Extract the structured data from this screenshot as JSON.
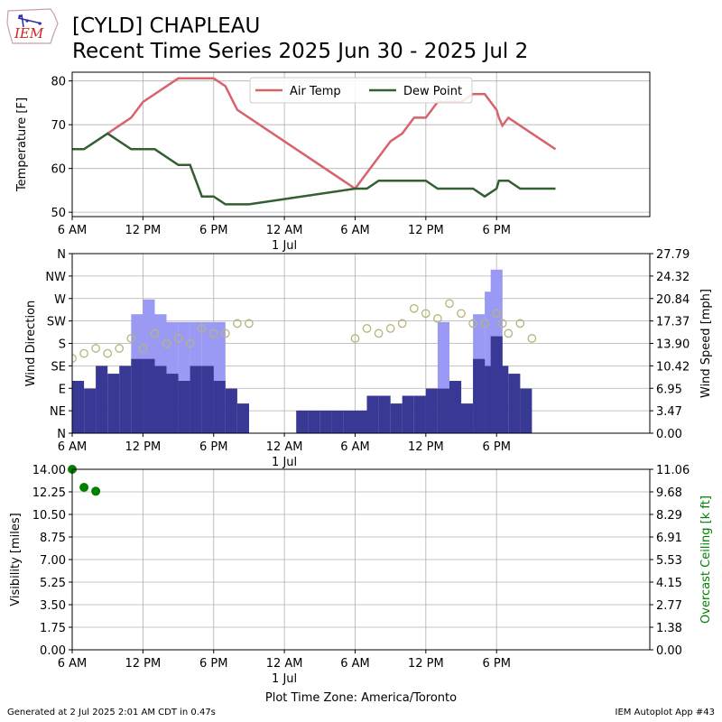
{
  "title": "[CYLD] CHAPLEAU",
  "subtitle": "Recent Time Series 2025 Jun 30 - 2025 Jul 2",
  "logo_text": "IEM",
  "footer_left": "Generated at 2 Jul 2025 2:01 AM CDT in 0.47s",
  "footer_right": "IEM Autoplot App #43",
  "timezone_label": "Plot Time Zone: America/Toronto",
  "colors": {
    "air_temp": "#d9636a",
    "dew_point": "#335f33",
    "gust": "#9a9af5",
    "wind": "#383895",
    "direction_marker": "#b5b57a",
    "visibility": "#008000",
    "ceiling_axis": "#008000"
  },
  "chart_data": [
    {
      "type": "line",
      "name": "temperature",
      "ylabel": "Temperature [F]",
      "ylim": [
        49,
        82
      ],
      "yticks": [
        50,
        60,
        70,
        80
      ],
      "xlim": [
        0,
        49
      ],
      "xticks": [
        {
          "h": 0,
          "label": "6 AM"
        },
        {
          "h": 6,
          "label": "12 PM"
        },
        {
          "h": 12,
          "label": "6 PM"
        },
        {
          "h": 18,
          "label": "12 AM",
          "sublabel": "1 Jul"
        },
        {
          "h": 24,
          "label": "6 AM"
        },
        {
          "h": 30,
          "label": "12 PM"
        },
        {
          "h": 36,
          "label": "6 PM"
        }
      ],
      "grid": true,
      "legend_position": "top-center",
      "series": [
        {
          "name": "Air Temp",
          "color_key": "air_temp",
          "x": [
            3,
            5,
            6,
            9,
            12,
            13,
            14,
            24,
            25,
            27,
            28,
            29,
            30,
            31,
            33,
            34,
            35,
            36,
            36.2,
            36.5,
            37,
            39,
            40,
            41
          ],
          "y": [
            68,
            71.6,
            75.2,
            80.6,
            80.6,
            78.8,
            73.4,
            55.4,
            59,
            66.2,
            68,
            71.6,
            71.6,
            75.2,
            75.2,
            77,
            77,
            73.4,
            71.6,
            69.8,
            71.6,
            68,
            66.2,
            64.4
          ]
        },
        {
          "name": "Dew Point",
          "color_key": "dew_point",
          "x": [
            0,
            1,
            3,
            5,
            6,
            7,
            9,
            10,
            11,
            12,
            13,
            15,
            24,
            25,
            26,
            30,
            31,
            34,
            35,
            36,
            36.2,
            36.5,
            37,
            38,
            39,
            40,
            41
          ],
          "y": [
            64.4,
            64.4,
            68,
            64.4,
            64.4,
            64.4,
            60.8,
            60.8,
            53.6,
            53.6,
            51.8,
            51.8,
            55.4,
            55.4,
            57.2,
            57.2,
            55.4,
            55.4,
            53.6,
            55.4,
            57.2,
            57.2,
            57.2,
            55.4,
            55.4,
            55.4,
            55.4
          ]
        }
      ]
    },
    {
      "type": "bar",
      "name": "wind",
      "ylabel": "Wind Direction",
      "y2label": "Wind Speed [mph]",
      "ylim": [
        0,
        360
      ],
      "ytick_labels": [
        "N",
        "NE",
        "E",
        "SE",
        "S",
        "SW",
        "W",
        "NW",
        "N"
      ],
      "y2lim": [
        0,
        27.79
      ],
      "y2ticks": [
        "0.00",
        "3.47",
        "6.95",
        "10.42",
        "13.90",
        "17.37",
        "20.84",
        "24.32",
        "27.79"
      ],
      "xlim": [
        0,
        49
      ],
      "grid": true,
      "wind_speed": [
        [
          0.5,
          8.1
        ],
        [
          1.5,
          6.9
        ],
        [
          2.5,
          10.4
        ],
        [
          3.5,
          9.2
        ],
        [
          4.5,
          10.4
        ],
        [
          5.5,
          11.5
        ],
        [
          6.5,
          11.5
        ],
        [
          7.5,
          10.4
        ],
        [
          8.5,
          9.2
        ],
        [
          9.5,
          8.1
        ],
        [
          10.5,
          10.4
        ],
        [
          11.5,
          10.4
        ],
        [
          12.5,
          8.1
        ],
        [
          13.5,
          6.9
        ],
        [
          14.5,
          4.6
        ],
        [
          19.5,
          3.5
        ],
        [
          20.5,
          3.5
        ],
        [
          21.5,
          3.5
        ],
        [
          22.5,
          3.5
        ],
        [
          23.5,
          3.5
        ],
        [
          24.5,
          3.5
        ],
        [
          25.5,
          5.8
        ],
        [
          26.5,
          5.8
        ],
        [
          27.5,
          4.6
        ],
        [
          28.5,
          5.8
        ],
        [
          29.5,
          5.8
        ],
        [
          30.5,
          6.9
        ],
        [
          31.5,
          6.9
        ],
        [
          32.5,
          8.1
        ],
        [
          33.5,
          4.6
        ],
        [
          34.5,
          11.5
        ],
        [
          35.5,
          10.4
        ],
        [
          36.0,
          15.0
        ],
        [
          36.5,
          10.4
        ],
        [
          37.5,
          9.2
        ],
        [
          38.5,
          6.9
        ]
      ],
      "wind_gust": [
        [
          5.5,
          18.4
        ],
        [
          6.5,
          20.7
        ],
        [
          7.5,
          18.4
        ],
        [
          8.5,
          17.2
        ],
        [
          9.5,
          17.2
        ],
        [
          10.5,
          17.2
        ],
        [
          11.5,
          17.2
        ],
        [
          12.5,
          17.2
        ],
        [
          31.5,
          17.2
        ],
        [
          34.5,
          18.4
        ],
        [
          35.5,
          21.9
        ],
        [
          36.0,
          25.3
        ]
      ],
      "direction": [
        [
          0,
          150
        ],
        [
          1,
          160
        ],
        [
          2,
          170
        ],
        [
          3,
          160
        ],
        [
          4,
          170
        ],
        [
          5,
          190
        ],
        [
          6,
          170
        ],
        [
          7,
          200
        ],
        [
          8,
          180
        ],
        [
          9,
          190
        ],
        [
          10,
          180
        ],
        [
          11,
          210
        ],
        [
          12,
          200
        ],
        [
          13,
          200
        ],
        [
          14,
          220
        ],
        [
          15,
          220
        ],
        [
          24,
          190
        ],
        [
          25,
          210
        ],
        [
          26,
          200
        ],
        [
          27,
          210
        ],
        [
          28,
          220
        ],
        [
          29,
          250
        ],
        [
          30,
          240
        ],
        [
          31,
          230
        ],
        [
          32,
          260
        ],
        [
          33,
          240
        ],
        [
          34,
          220
        ],
        [
          35,
          220
        ],
        [
          36,
          240
        ],
        [
          36.5,
          220
        ],
        [
          37,
          200
        ],
        [
          38,
          220
        ],
        [
          39,
          190
        ]
      ]
    },
    {
      "type": "scatter",
      "name": "visibility",
      "ylabel": "Visibility [miles]",
      "y2label": "Overcast Ceiling [k ft]",
      "ylim": [
        0,
        14
      ],
      "yticks": [
        "0.00",
        "1.75",
        "3.50",
        "5.25",
        "7.00",
        "8.75",
        "10.50",
        "12.25",
        "14.00"
      ],
      "y2lim": [
        0,
        11.06
      ],
      "y2ticks": [
        "0.00",
        "1.38",
        "2.77",
        "4.15",
        "5.53",
        "6.91",
        "8.29",
        "9.68",
        "11.06"
      ],
      "xlim": [
        0,
        49
      ],
      "grid": true,
      "x": [
        0,
        1,
        2
      ],
      "y": [
        14.0,
        12.6,
        12.3
      ]
    }
  ]
}
